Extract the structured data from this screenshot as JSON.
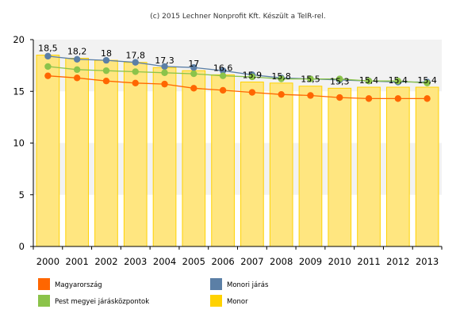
{
  "credit": "(c) 2015 Lechner Nonprofit Kft. Készült a TeIR-rel.",
  "colors": {
    "magyarorszag": "#ff6600",
    "monori_jaras": "#5b7fa6",
    "pest_megyei": "#8bc34a",
    "monor": "#ffd200",
    "monor_fill": "#ffe680"
  },
  "chart_data": {
    "type": "bar",
    "categories": [
      "2000",
      "2001",
      "2002",
      "2003",
      "2004",
      "2005",
      "2006",
      "2007",
      "2008",
      "2009",
      "2010",
      "2011",
      "2012",
      "2013"
    ],
    "ylim": [
      0,
      20
    ],
    "yticks": [
      0,
      5,
      10,
      15,
      20
    ],
    "grid": "horizontal alternating bands",
    "legend_position": "bottom",
    "series": [
      {
        "key": "monor",
        "name": "Monor",
        "render": "bar",
        "values": [
          18.5,
          18.2,
          18,
          17.8,
          17.3,
          17,
          16.6,
          15.9,
          15.8,
          15.5,
          15.3,
          15.4,
          15.4,
          15.4
        ],
        "labels": [
          "18,5",
          "18,2",
          "18",
          "17,8",
          "17,3",
          "17",
          "16,6",
          "15,9",
          "15,8",
          "15,5",
          "15,3",
          "15,4",
          "15,4",
          "15,4"
        ]
      },
      {
        "key": "monori_jaras",
        "name": "Monori járás",
        "render": "line",
        "values": [
          18.4,
          18.1,
          18.0,
          17.8,
          17.4,
          17.3,
          17.0,
          16.6,
          16.3,
          16.2,
          16.1,
          16.0,
          15.9,
          15.9
        ]
      },
      {
        "key": "pest_megyei",
        "name": "Pest megyei járásközpontok",
        "render": "line",
        "values": [
          17.4,
          17.1,
          17.0,
          16.9,
          16.8,
          16.7,
          16.5,
          16.4,
          16.2,
          16.2,
          16.2,
          16.0,
          16.0,
          15.8
        ]
      },
      {
        "key": "magyarorszag",
        "name": "Magyarország",
        "render": "line",
        "values": [
          16.5,
          16.3,
          16.0,
          15.8,
          15.7,
          15.3,
          15.1,
          14.9,
          14.7,
          14.6,
          14.4,
          14.3,
          14.3,
          14.3
        ]
      }
    ],
    "legend": [
      {
        "name": "Magyarország",
        "color_key": "magyarorszag"
      },
      {
        "name": "Monori járás",
        "color_key": "monori_jaras"
      },
      {
        "name": "Pest megyei járásközpontok",
        "color_key": "pest_megyei"
      },
      {
        "name": "Monor",
        "color_key": "monor"
      }
    ]
  }
}
